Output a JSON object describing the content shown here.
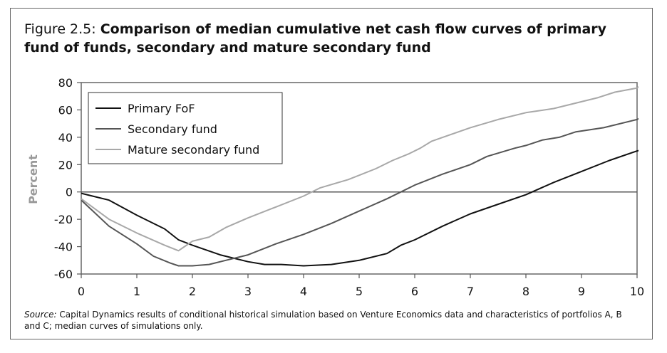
{
  "figure": {
    "label": "Figure 2.5:",
    "title": "Comparison of median cumulative net cash flow curves of primary fund of funds, secondary and mature secondary fund",
    "source_label": "Source:",
    "source_text": "Capital Dynamics results of conditional historical simulation based on Venture Economics data and characteristics of portfolios A, B and C; median curves of simulations only."
  },
  "chart_data": {
    "type": "line",
    "title": "Comparison of median cumulative net cash flow curves of primary fund of funds, secondary and mature secondary fund",
    "xlabel": "",
    "ylabel": "Percent",
    "xlim": [
      0,
      10
    ],
    "ylim": [
      -60,
      80
    ],
    "xticks": [
      0,
      1,
      2,
      3,
      4,
      5,
      6,
      7,
      8,
      9,
      10
    ],
    "yticks": [
      -60,
      -40,
      -20,
      0,
      20,
      40,
      60,
      80
    ],
    "grid": false,
    "legend_position": "top-left",
    "series": [
      {
        "name": "Primary FoF",
        "color": "#111111",
        "points": [
          [
            0,
            -1
          ],
          [
            0.5,
            -6
          ],
          [
            1,
            -17
          ],
          [
            1.5,
            -27
          ],
          [
            1.75,
            -35
          ],
          [
            2,
            -39
          ],
          [
            2.5,
            -46
          ],
          [
            3,
            -51
          ],
          [
            3.3,
            -53
          ],
          [
            3.6,
            -53
          ],
          [
            4,
            -54
          ],
          [
            4.5,
            -53
          ],
          [
            5,
            -50
          ],
          [
            5.5,
            -45
          ],
          [
            5.75,
            -39
          ],
          [
            6,
            -35
          ],
          [
            6.5,
            -25
          ],
          [
            7,
            -16
          ],
          [
            7.5,
            -9
          ],
          [
            8,
            -2
          ],
          [
            8.5,
            7
          ],
          [
            9,
            15
          ],
          [
            9.5,
            23
          ],
          [
            10,
            30
          ],
          [
            10.1,
            31
          ]
        ]
      },
      {
        "name": "Secondary fund",
        "color": "#555555",
        "points": [
          [
            0,
            -6
          ],
          [
            0.5,
            -25
          ],
          [
            1,
            -38
          ],
          [
            1.3,
            -47
          ],
          [
            1.6,
            -52
          ],
          [
            1.75,
            -54
          ],
          [
            2,
            -54
          ],
          [
            2.3,
            -53
          ],
          [
            2.6,
            -50
          ],
          [
            3,
            -46
          ],
          [
            3.5,
            -38
          ],
          [
            4,
            -31
          ],
          [
            4.5,
            -23
          ],
          [
            5,
            -14
          ],
          [
            5.5,
            -5
          ],
          [
            6,
            5
          ],
          [
            6.5,
            13
          ],
          [
            7,
            20
          ],
          [
            7.3,
            26
          ],
          [
            7.8,
            32
          ],
          [
            8,
            34
          ],
          [
            8.3,
            38
          ],
          [
            8.6,
            40
          ],
          [
            8.9,
            44
          ],
          [
            9.4,
            47
          ],
          [
            10,
            53
          ],
          [
            10.1,
            55
          ]
        ]
      },
      {
        "name": "Mature secondary fund",
        "color": "#a8a8a8",
        "points": [
          [
            0,
            -5
          ],
          [
            0.5,
            -20
          ],
          [
            1,
            -30
          ],
          [
            1.5,
            -39
          ],
          [
            1.75,
            -43
          ],
          [
            2,
            -36
          ],
          [
            2.3,
            -33
          ],
          [
            2.6,
            -26
          ],
          [
            3,
            -19
          ],
          [
            3.5,
            -11
          ],
          [
            4,
            -3
          ],
          [
            4.3,
            3
          ],
          [
            4.8,
            9
          ],
          [
            5.3,
            17
          ],
          [
            5.6,
            23
          ],
          [
            5.9,
            28
          ],
          [
            6.1,
            32
          ],
          [
            6.3,
            37
          ],
          [
            7,
            47
          ],
          [
            7.5,
            53
          ],
          [
            8,
            58
          ],
          [
            8.5,
            61
          ],
          [
            9,
            66
          ],
          [
            9.3,
            69
          ],
          [
            9.6,
            73
          ],
          [
            10,
            76
          ],
          [
            10.1,
            79
          ]
        ]
      }
    ]
  }
}
